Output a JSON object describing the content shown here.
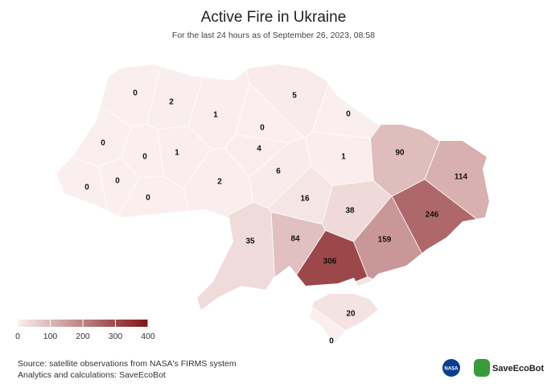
{
  "chart_data": {
    "type": "choropleth",
    "title": "Active Fire in Ukraine",
    "subtitle": "For the last 24 hours as of September 26, 2023, 08:58",
    "values": [
      0,
      2,
      1,
      5,
      0,
      0,
      0,
      1,
      0,
      4,
      1,
      90,
      114,
      0,
      0,
      0,
      2,
      6,
      16,
      38,
      246,
      35,
      84,
      159,
      306,
      20,
      0
    ],
    "scale_lim": [
      0,
      400
    ],
    "scale_colors": [
      "#fbeeee",
      "#7f1416"
    ],
    "legend_ticks": [
      0,
      100,
      200,
      300,
      400
    ],
    "source": [
      "Source: satellite observations from NASA's FIRMS system",
      "Analytics and calculations: SaveEcoBot"
    ],
    "logos": [
      "NASA",
      "SaveEcoBot"
    ]
  }
}
